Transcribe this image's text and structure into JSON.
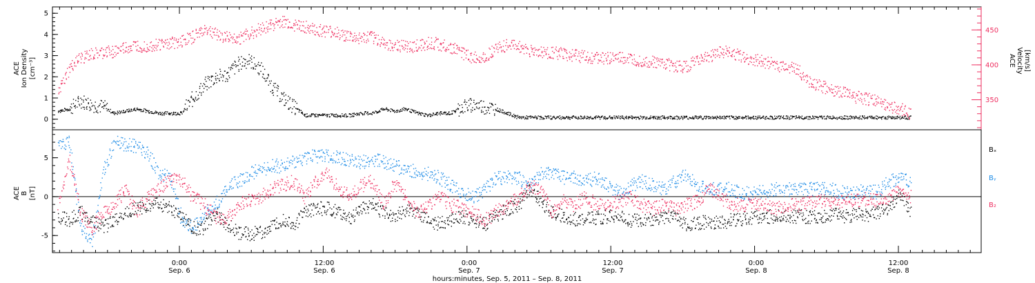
{
  "colors": {
    "black": "#000000",
    "pink": "#ee2d5f",
    "blue": "#1e8ce6"
  },
  "chart_data": [
    {
      "type": "scatter",
      "panel": "plasma",
      "ylabel_left": [
        "ACE",
        "Ion Density",
        "[cm⁻³]"
      ],
      "ylabel_right": [
        "ACE",
        "Velocity",
        "[km/s]"
      ],
      "ylim_left": [
        -0.5,
        5.3
      ],
      "yticks_left": [
        "0",
        "1",
        "2",
        "3",
        "4",
        "5"
      ],
      "ylim_right": [
        307,
        483
      ],
      "yticks_right": [
        "350",
        "400",
        "450"
      ],
      "series": [
        {
          "axis": "left",
          "color": "#000000",
          "x": [
            0,
            1,
            2,
            3,
            4,
            5,
            6,
            7,
            8,
            9,
            10,
            11,
            12,
            13,
            14,
            15,
            16,
            17,
            18,
            19,
            20,
            21,
            22,
            23,
            24,
            25,
            26,
            27,
            28,
            29,
            30,
            31,
            32,
            33,
            34,
            35,
            36,
            37,
            38,
            39,
            40,
            41,
            42,
            43,
            44,
            45,
            46,
            47,
            48,
            49,
            50,
            51,
            52,
            53,
            54,
            55,
            56,
            57,
            58,
            59,
            60,
            61,
            62,
            63,
            64,
            65,
            66,
            67,
            68,
            69,
            70,
            71,
            72,
            73,
            74,
            75,
            76
          ],
          "y": [
            0.4,
            0.5,
            0.9,
            0.7,
            0.6,
            0.3,
            0.4,
            0.5,
            0.4,
            0.3,
            0.3,
            0.3,
            1.0,
            1.6,
            2.0,
            2.1,
            2.6,
            2.8,
            2.4,
            1.6,
            1.0,
            0.6,
            0.2,
            0.2,
            0.2,
            0.2,
            0.2,
            0.3,
            0.3,
            0.5,
            0.4,
            0.5,
            0.3,
            0.2,
            0.3,
            0.3,
            0.6,
            0.7,
            0.6,
            0.5,
            0.3,
            0.1,
            0.1,
            0.1,
            0.1,
            0.1,
            0.1,
            0.1,
            0.1,
            0.1,
            0.1,
            0.1,
            0.1,
            0.1,
            0.1,
            0.1,
            0.1,
            0.1,
            0.1,
            0.1,
            0.1,
            0.1,
            0.1,
            0.1,
            0.1,
            0.1,
            0.1,
            0.1,
            0.1,
            0.1,
            0.1,
            0.1,
            0.1,
            0.1,
            0.1,
            0.1,
            0.1
          ]
        },
        {
          "axis": "right",
          "color": "#ee2d5f",
          "x": [
            0,
            1,
            2,
            3,
            4,
            5,
            6,
            7,
            8,
            9,
            10,
            11,
            12,
            13,
            14,
            15,
            16,
            17,
            18,
            19,
            20,
            21,
            22,
            23,
            24,
            25,
            26,
            27,
            28,
            29,
            30,
            31,
            32,
            33,
            34,
            35,
            36,
            37,
            38,
            39,
            40,
            41,
            42,
            43,
            44,
            45,
            46,
            47,
            48,
            49,
            50,
            51,
            52,
            53,
            54,
            55,
            56,
            57,
            58,
            59,
            60,
            61,
            62,
            63,
            64,
            65,
            66,
            67,
            68,
            69,
            70,
            71,
            72,
            73,
            74,
            75,
            76
          ],
          "y": [
            360,
            395,
            410,
            415,
            418,
            420,
            425,
            428,
            428,
            430,
            432,
            435,
            440,
            452,
            445,
            440,
            438,
            445,
            452,
            458,
            462,
            458,
            455,
            450,
            448,
            446,
            440,
            438,
            440,
            432,
            428,
            426,
            428,
            432,
            430,
            425,
            418,
            410,
            412,
            424,
            428,
            428,
            420,
            418,
            418,
            416,
            414,
            412,
            410,
            410,
            410,
            408,
            406,
            404,
            402,
            398,
            398,
            408,
            412,
            420,
            418,
            412,
            408,
            405,
            400,
            398,
            392,
            375,
            370,
            365,
            360,
            355,
            352,
            348,
            342,
            338,
            330
          ]
        }
      ]
    },
    {
      "type": "scatter",
      "panel": "magnetic",
      "ylabel": [
        "ACE",
        "B",
        "[nT]"
      ],
      "ylim": [
        -7.2,
        8.6
      ],
      "yticks": [
        "-5",
        "0",
        "5"
      ],
      "series": [
        {
          "name": "Bₓ",
          "color": "#000000",
          "x": [
            0,
            1,
            2,
            3,
            4,
            5,
            6,
            7,
            8,
            9,
            10,
            11,
            12,
            13,
            14,
            15,
            16,
            17,
            18,
            19,
            20,
            21,
            22,
            23,
            24,
            25,
            26,
            27,
            28,
            29,
            30,
            31,
            32,
            33,
            34,
            35,
            36,
            37,
            38,
            39,
            40,
            41,
            42,
            43,
            44,
            45,
            46,
            47,
            48,
            49,
            50,
            51,
            52,
            53,
            54,
            55,
            56,
            57,
            58,
            59,
            60,
            61,
            62,
            63,
            64,
            65,
            66,
            67,
            68,
            69,
            70,
            71,
            72,
            73,
            74,
            75,
            76
          ],
          "y": [
            -2.5,
            -3,
            -2,
            -3,
            -4,
            -3,
            -2,
            -1.5,
            -1,
            -1,
            -1.5,
            -2.5,
            -4,
            -4,
            -2,
            -3.5,
            -4.5,
            -4.8,
            -4.5,
            -4,
            -3,
            -3.5,
            -2,
            -1.5,
            -1.5,
            -2,
            -3,
            -1.5,
            -1,
            -2,
            -2.5,
            -1.5,
            -2,
            -3,
            -3.5,
            -3,
            -2.5,
            -3,
            -3.5,
            -2.5,
            -1.5,
            -1,
            1,
            -0.5,
            -2,
            -2.5,
            -2.8,
            -2.8,
            -2.6,
            -2.5,
            -2.5,
            -3,
            -3,
            -2.8,
            -2.5,
            -2.6,
            -3.5,
            -3.3,
            -3.2,
            -3.3,
            -3,
            -2.8,
            -2.6,
            -2.5,
            -2.5,
            -2.6,
            -2.5,
            -2.5,
            -2.5,
            -2.2,
            -2.5,
            -2.3,
            -2.3,
            -2,
            -1.5,
            0.5,
            -2
          ]
        },
        {
          "name": "Bᵧ",
          "color": "#1e8ce6",
          "x": [
            0,
            1,
            2,
            3,
            4,
            5,
            6,
            7,
            8,
            9,
            10,
            11,
            12,
            13,
            14,
            15,
            16,
            17,
            18,
            19,
            20,
            21,
            22,
            23,
            24,
            25,
            26,
            27,
            28,
            29,
            30,
            31,
            32,
            33,
            34,
            35,
            36,
            37,
            38,
            39,
            40,
            41,
            42,
            43,
            44,
            45,
            46,
            47,
            48,
            49,
            50,
            51,
            52,
            53,
            54,
            55,
            56,
            57,
            58,
            59,
            60,
            61,
            62,
            63,
            64,
            65,
            66,
            67,
            68,
            69,
            70,
            71,
            72,
            73,
            74,
            75,
            76
          ],
          "y": [
            6.5,
            7,
            -3.5,
            -6,
            3,
            7,
            6.8,
            6.5,
            5.5,
            3,
            2.5,
            -3,
            -4,
            -2,
            -1,
            1,
            2,
            3,
            3.5,
            4,
            4,
            4.5,
            5,
            5.3,
            5.3,
            5,
            4.8,
            4.5,
            4.8,
            4.5,
            4,
            3.5,
            3.2,
            3,
            2.5,
            1.5,
            0.5,
            0,
            1,
            2.5,
            2.5,
            2.5,
            1.5,
            3,
            3,
            2.5,
            2.5,
            2,
            2.5,
            1.5,
            0.5,
            1.5,
            2,
            1.5,
            1,
            2,
            3,
            1.5,
            1,
            1,
            1,
            0.5,
            0.5,
            0.8,
            1,
            1,
            1,
            1,
            1,
            1,
            0.5,
            0.5,
            1,
            0.5,
            2,
            2.5,
            2
          ]
        },
        {
          "name": "B₂",
          "color": "#ee2d5f",
          "x": [
            0,
            1,
            2,
            3,
            4,
            5,
            6,
            7,
            8,
            9,
            10,
            11,
            12,
            13,
            14,
            15,
            16,
            17,
            18,
            19,
            20,
            21,
            22,
            23,
            24,
            25,
            26,
            27,
            28,
            29,
            30,
            31,
            32,
            33,
            34,
            35,
            36,
            37,
            38,
            39,
            40,
            41,
            42,
            43,
            44,
            45,
            46,
            47,
            48,
            49,
            50,
            51,
            52,
            53,
            54,
            55,
            56,
            57,
            58,
            59,
            60,
            61,
            62,
            63,
            64,
            65,
            66,
            67,
            68,
            69,
            70,
            71,
            72,
            73,
            74,
            75,
            76
          ],
          "y": [
            -1,
            5,
            -2,
            -4,
            -2,
            -1,
            1,
            -2,
            0,
            1,
            2.5,
            2,
            0,
            -1,
            -2.5,
            -3,
            -1,
            -0.5,
            0,
            1,
            1.5,
            2,
            0,
            2,
            3,
            1,
            0,
            1.5,
            2,
            -1,
            2,
            0,
            -2,
            -1,
            0,
            -1,
            -1.5,
            -2,
            -3,
            -2,
            -1,
            0,
            1.5,
            1,
            -2,
            -0.5,
            -1,
            0,
            -1,
            -1,
            -0.5,
            0,
            -1,
            -1.5,
            -1,
            -1.5,
            -1,
            -0.5,
            1,
            0,
            -1,
            -1,
            -0.8,
            -1,
            -1.5,
            -1,
            -1,
            -0.8,
            -0.5,
            -0.5,
            -0.5,
            -0.5,
            -0.3,
            -0.5,
            0,
            1,
            0
          ]
        }
      ],
      "legend": [
        "Bₓ",
        "Bᵧ",
        "B₂"
      ]
    }
  ],
  "xaxis": {
    "ticks": [
      {
        "time": "0:00",
        "date": "Sep. 6"
      },
      {
        "time": "12:00",
        "date": "Sep. 6"
      },
      {
        "time": "0:00",
        "date": "Sep. 7"
      },
      {
        "time": "12:00",
        "date": "Sep. 7"
      },
      {
        "time": "0:00",
        "date": "Sep. 8"
      },
      {
        "time": "12:00",
        "date": "Sep. 8"
      }
    ],
    "label": "hours:minutes, Sep.  5, 2011 – Sep.  8, 2011"
  }
}
